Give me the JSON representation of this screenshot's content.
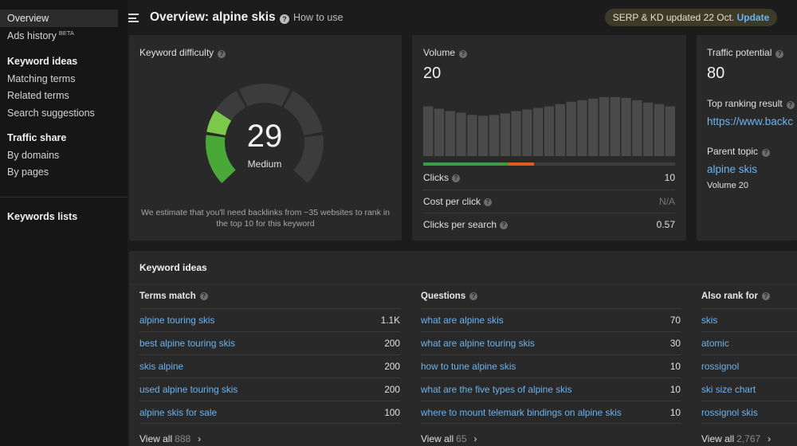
{
  "sidebar": {
    "overview": "Overview",
    "ads_history": "Ads history",
    "beta_badge": "BETA",
    "keyword_ideas_heading": "Keyword ideas",
    "matching_terms": "Matching terms",
    "related_terms": "Related terms",
    "search_suggestions": "Search suggestions",
    "traffic_share_heading": "Traffic share",
    "by_domains": "By domains",
    "by_pages": "By pages",
    "keywords_lists": "Keywords lists"
  },
  "header": {
    "title": "Overview: alpine skis",
    "how_to_use": "How to use",
    "update_status": "SERP & KD updated 22 Oct.",
    "update_link": "Update"
  },
  "kd_card": {
    "label": "Keyword difficulty",
    "value": "29",
    "rating": "Medium",
    "note": "We estimate that you'll need backlinks from ~35 websites to rank in the top 10 for this keyword"
  },
  "volume_card": {
    "label": "Volume",
    "value": "20",
    "trend_bar_levels": [
      64,
      61,
      58,
      56,
      53,
      52,
      53,
      55,
      58,
      60,
      62,
      64,
      67,
      70,
      72,
      74,
      76,
      76,
      75,
      72,
      69,
      67,
      64
    ],
    "clicks_split": {
      "organic": 0.34,
      "paid": 0.1
    },
    "rows": [
      {
        "label": "Clicks",
        "value": "10"
      },
      {
        "label": "Cost per click",
        "value": "N/A"
      },
      {
        "label": "Clicks per search",
        "value": "0.57"
      }
    ]
  },
  "traffic_card": {
    "label": "Traffic potential",
    "value": "80",
    "top_ranking_label": "Top ranking result",
    "top_ranking_url": "https://www.backc",
    "parent_topic_label": "Parent topic",
    "parent_topic": "alpine skis",
    "parent_volume": "Volume 20"
  },
  "keyword_ideas": {
    "title": "Keyword ideas",
    "view_all_label": "View all",
    "columns": [
      {
        "heading": "Terms match",
        "rows": [
          {
            "keyword": "alpine touring skis",
            "volume": "1.1K"
          },
          {
            "keyword": "best alpine touring skis",
            "volume": "200"
          },
          {
            "keyword": "skis alpine",
            "volume": "200"
          },
          {
            "keyword": "used alpine touring skis",
            "volume": "200"
          },
          {
            "keyword": "alpine skis for sale",
            "volume": "100"
          }
        ],
        "total": "888"
      },
      {
        "heading": "Questions",
        "rows": [
          {
            "keyword": "what are alpine skis",
            "volume": "70"
          },
          {
            "keyword": "what are alpine touring skis",
            "volume": "30"
          },
          {
            "keyword": "how to tune alpine skis",
            "volume": "10"
          },
          {
            "keyword": "what are the five types of alpine skis",
            "volume": "10"
          },
          {
            "keyword": "where to mount telemark bindings on alpine skis",
            "volume": "10"
          }
        ],
        "total": "65"
      },
      {
        "heading": "Also rank for",
        "rows": [
          {
            "keyword": "skis",
            "volume": ""
          },
          {
            "keyword": "atomic",
            "volume": ""
          },
          {
            "keyword": "rossignol",
            "volume": ""
          },
          {
            "keyword": "ski size chart",
            "volume": ""
          },
          {
            "keyword": "rossignol skis",
            "volume": ""
          }
        ],
        "total": "2,767"
      }
    ]
  },
  "colors": {
    "link": "#6bb3f0",
    "gauge_green": "#4aa838",
    "gauge_light_green": "#7cc84a",
    "clicks_organic": "#3d9a46",
    "clicks_paid": "#e05c1e"
  }
}
